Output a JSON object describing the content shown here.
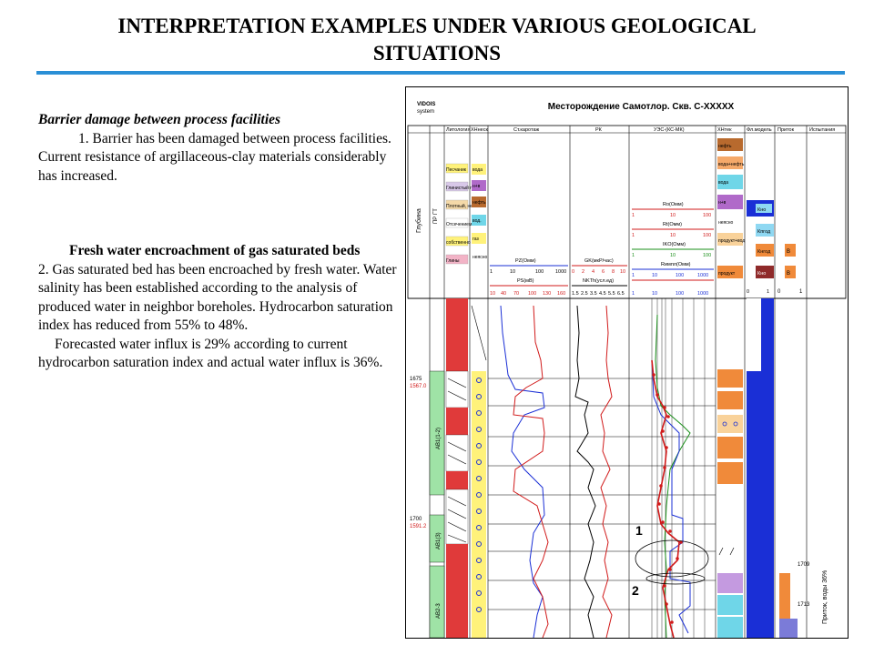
{
  "title": {
    "line1": "INTERPRETATION EXAMPLES UNDER VARIOUS GEOLOGICAL",
    "line2": "SITUATIONS"
  },
  "left": {
    "heading1": "Barrier damage between process facilities",
    "para1": "1. Barrier has been damaged between process facilities. Current resistance of argillaceous-clay materials considerably has increased.",
    "heading2": "Fresh water encroachment of gas saturated beds",
    "para2": "2. Gas saturated bed has been encroached by fresh water. Water salinity has been established according to the analysis of produced water in neighbor boreholes. Hydrocarbon saturation index has reduced from 55%  to 48%.",
    "para3": "Forecasted water influx is 29% according to current hydrocarbon saturation index and actual water influx is 36%."
  },
  "log": {
    "logo_line1": "VIDOIS",
    "logo_line2": "system",
    "header": "Месторождение Самотлор. Скв. С-XXXXX",
    "col_depth": "Глубина",
    "col_strat": "ПР ГТ",
    "col_lith": "Литология",
    "col_xhnes": "ХНнеск",
    "col_karot": "Ст.каротаж",
    "col_rk": "РК",
    "col_ues": "УЭС-(КС-МК)",
    "col_xhtek": "ХНтек",
    "col_model": "Фл.модель",
    "col_inflow": "Приток",
    "col_tests": "Испытания",
    "lith_labels": [
      "Песчаник",
      "Глинистый п",
      "Плотный, не",
      "Отсечениемн",
      "собственно",
      "Глины"
    ],
    "xhnes_labels": [
      "вода",
      "н+в",
      "нефть",
      "вод.",
      "газ",
      "неясно"
    ],
    "xhtek_labels": [
      "нефть",
      "вода+нефть",
      "вода",
      "н+в",
      "неясно",
      "продукт+вод",
      "продукт"
    ],
    "model_labels": [
      "Кно",
      "Кпгод",
      "Кнгод",
      "Кно"
    ],
    "inflow_labels": [
      "В",
      "В"
    ],
    "ues_curves": [
      "Ro(Омм)",
      "Rt(Омм)",
      "IKO(Омм)",
      "Rимпл(Омм)"
    ],
    "ues_scale1": [
      "1",
      "10",
      "100"
    ],
    "ues_scale2": [
      "1",
      "10",
      "100",
      "1000"
    ],
    "karot_curves": [
      "PZ(Омм)",
      "PS(мВ)"
    ],
    "karot_scale1": [
      "1",
      "10",
      "100",
      "1000"
    ],
    "karot_scale2": [
      "10",
      "40",
      "70",
      "100",
      "130",
      "160"
    ],
    "rk_curves": [
      "GK(мкР/час)",
      "NKTh(усл.ед)"
    ],
    "rk_scale1": [
      "0",
      "2",
      "4",
      "6",
      "8",
      "10"
    ],
    "rk_scale2": [
      "1.5",
      "2.5",
      "3.5",
      "4.5",
      "5.5",
      "6.5"
    ],
    "inflow_scale": [
      "0",
      "1",
      "0",
      "1"
    ],
    "depths": [
      {
        "md": "1675",
        "tvd": "1567.0"
      },
      {
        "md": "1700",
        "tvd": "1591.2"
      }
    ],
    "zones": [
      "АВ1(1-2)",
      "АВ1(3)",
      "АВ2-3"
    ],
    "markers": [
      "1",
      "2"
    ],
    "test_depths": [
      "1709",
      "1713"
    ],
    "test_label": "Приток, воды 36%"
  },
  "colors": {
    "accent_rule": "#2a8fd6",
    "curve_red": "#d11a1a",
    "blue_col": "#1a2fd6",
    "zone_green": "#9fe3a6"
  }
}
